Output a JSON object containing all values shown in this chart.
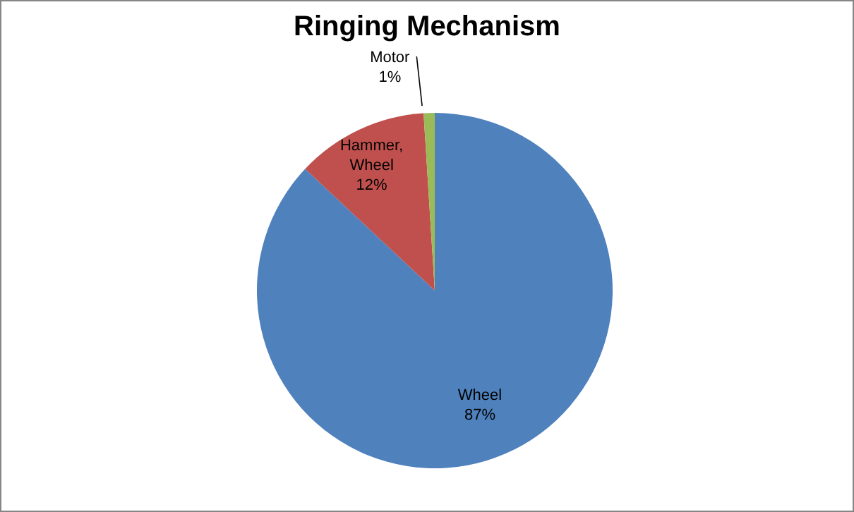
{
  "chart_data": {
    "type": "pie",
    "title": "Ringing Mechanism",
    "categories": [
      "Wheel",
      "Hammer, Wheel",
      "Motor"
    ],
    "values": [
      87,
      12,
      1
    ],
    "value_labels": [
      "87%",
      "12%",
      "1%"
    ],
    "colors": [
      "#4f81bd",
      "#c0504d",
      "#9bbb59"
    ]
  }
}
